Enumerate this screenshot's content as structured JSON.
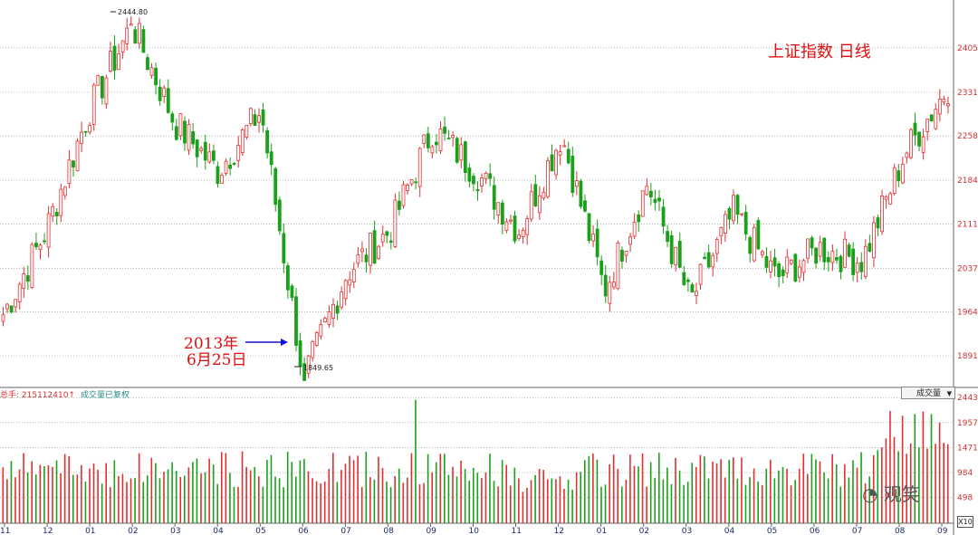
{
  "chart_data": [
    {
      "type": "candlestick",
      "title": "上证指数  日线",
      "y_ticks": [
        2405,
        2331,
        2258,
        2184,
        2111,
        2037,
        1964,
        1891
      ],
      "ylim": [
        1820,
        2470
      ],
      "grid": true,
      "high_marker": "2444.80",
      "low_marker": "1849.65",
      "annotation_line1": "2013年",
      "annotation_line2": "6月25日",
      "key_points": [
        {
          "date": "2012-11",
          "close": 1960
        },
        {
          "date": "2012-12",
          "close": 2100
        },
        {
          "date": "2013-01",
          "close": 2300
        },
        {
          "date": "2013-02",
          "close": 2444.8
        },
        {
          "date": "2013-03",
          "close": 2280
        },
        {
          "date": "2013-04",
          "close": 2200
        },
        {
          "date": "2013-05",
          "close": 2300
        },
        {
          "date": "2013-06",
          "close": 1849.65
        },
        {
          "date": "2013-07",
          "close": 2030
        },
        {
          "date": "2013-08",
          "close": 2100
        },
        {
          "date": "2013-09",
          "close": 2270
        },
        {
          "date": "2013-10",
          "close": 2200
        },
        {
          "date": "2013-11",
          "close": 2100
        },
        {
          "date": "2013-12",
          "close": 2260
        },
        {
          "date": "2014-01",
          "close": 2000
        },
        {
          "date": "2014-02",
          "close": 2180
        },
        {
          "date": "2014-03",
          "close": 1980
        },
        {
          "date": "2014-04",
          "close": 2130
        },
        {
          "date": "2014-05",
          "close": 2020
        },
        {
          "date": "2014-06",
          "close": 2070
        },
        {
          "date": "2014-07",
          "close": 2050
        },
        {
          "date": "2014-08",
          "close": 2230
        },
        {
          "date": "2014-09",
          "close": 2340
        }
      ]
    },
    {
      "type": "bar",
      "title": "成交量",
      "y_ticks": [
        "2443",
        "1957",
        "1471",
        "984",
        "498"
      ],
      "ylim": [
        0,
        2500
      ],
      "unit_label": "X10"
    }
  ],
  "x_ticks": [
    "11",
    "12",
    "01",
    "02",
    "03",
    "04",
    "05",
    "06",
    "07",
    "08",
    "09",
    "10",
    "11",
    "12",
    "01",
    "02",
    "03",
    "04",
    "05",
    "06",
    "07",
    "08",
    "09"
  ],
  "volume_info": {
    "total": "总手: 215112410↑",
    "note": "成交量已复权"
  },
  "volume_selector": "成交量",
  "watermark": "观笑",
  "colors": {
    "up": "#e03030",
    "down": "#1aa01a",
    "grid": "#888888",
    "accent": "#e01010",
    "arrow": "#1010d0"
  }
}
